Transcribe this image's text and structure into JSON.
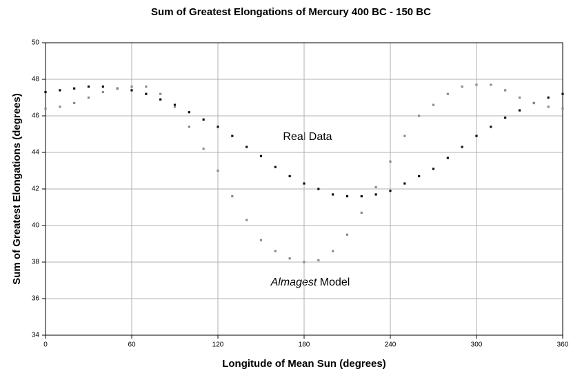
{
  "chart_data": {
    "type": "scatter",
    "title": "Sum of Greatest Elongations of Mercury 400 BC - 150 BC",
    "x_label": "Longitude of Mean Sun (degrees)",
    "y_label": "Sum of Greatest Elongations (degrees)",
    "xlim": [
      0,
      360
    ],
    "xticks": [
      0,
      60,
      120,
      180,
      240,
      300,
      360
    ],
    "ylim": [
      34,
      50
    ],
    "yticks": [
      34,
      36,
      38,
      40,
      42,
      44,
      46,
      48,
      50
    ],
    "grid": true,
    "annotations": [
      [
        "Real Data"
      ],
      [
        "Almagest",
        "Model"
      ]
    ],
    "x": [
      0,
      10,
      20,
      30,
      40,
      50,
      60,
      70,
      80,
      90,
      100,
      110,
      120,
      130,
      140,
      150,
      160,
      170,
      180,
      190,
      200,
      210,
      220,
      230,
      240,
      250,
      260,
      270,
      280,
      290,
      300,
      310,
      320,
      330,
      340,
      350,
      360
    ],
    "series": [
      {
        "name": "Real Data",
        "color": "#111111",
        "values": [
          47.3,
          47.4,
          47.5,
          47.6,
          47.6,
          47.5,
          47.4,
          47.2,
          46.9,
          46.6,
          46.2,
          45.8,
          45.4,
          44.9,
          44.3,
          43.8,
          43.2,
          42.7,
          42.3,
          42.0,
          41.7,
          41.6,
          41.6,
          41.7,
          41.9,
          42.3,
          42.7,
          43.1,
          43.7,
          44.3,
          44.9,
          45.4,
          45.9,
          46.3,
          46.7,
          47.0,
          47.2
        ]
      },
      {
        "name": "Almagest Model",
        "color": "#8a8a8a",
        "values": [
          46.4,
          46.5,
          46.7,
          47.0,
          47.3,
          47.5,
          47.6,
          47.6,
          47.2,
          46.5,
          45.4,
          44.2,
          43.0,
          41.6,
          40.3,
          39.2,
          38.6,
          38.2,
          38.0,
          38.1,
          38.6,
          39.5,
          40.7,
          42.1,
          43.5,
          44.9,
          46.0,
          46.6,
          47.2,
          47.6,
          47.7,
          47.7,
          47.4,
          47.0,
          46.7,
          46.5,
          46.4
        ]
      }
    ]
  }
}
